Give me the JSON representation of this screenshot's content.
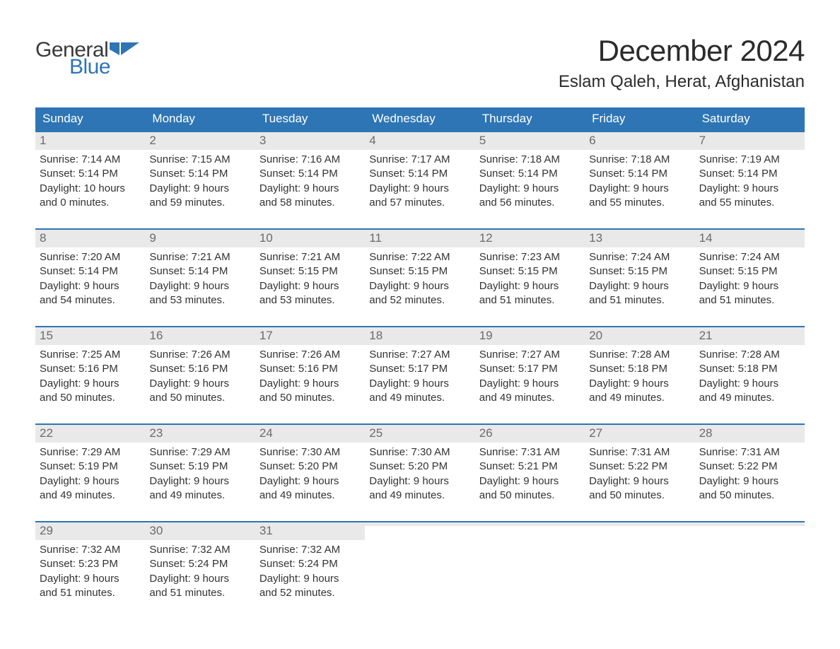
{
  "logo": {
    "word1": "General",
    "word2": "Blue",
    "flag_color": "#2e75b5"
  },
  "title": "December 2024",
  "location": "Eslam Qaleh, Herat, Afghanistan",
  "colors": {
    "header_bg": "#2e75b5",
    "header_text": "#ffffff",
    "week_border": "#2e75b5",
    "daynum_bg": "#e9e9e9",
    "daynum_text": "#6b6b6b",
    "body_text": "#333333",
    "page_bg": "#ffffff"
  },
  "typography": {
    "title_fontsize": 42,
    "location_fontsize": 24,
    "dow_fontsize": 17,
    "daynum_fontsize": 17,
    "body_fontsize": 15,
    "font_family": "Arial"
  },
  "layout": {
    "columns": 7,
    "week_border_width": 2
  },
  "days_of_week": [
    "Sunday",
    "Monday",
    "Tuesday",
    "Wednesday",
    "Thursday",
    "Friday",
    "Saturday"
  ],
  "labels": {
    "sunrise": "Sunrise:",
    "sunset": "Sunset:",
    "daylight": "Daylight:"
  },
  "weeks": [
    [
      {
        "n": "1",
        "sunrise": "7:14 AM",
        "sunset": "5:14 PM",
        "dl1": "10 hours",
        "dl2": "and 0 minutes."
      },
      {
        "n": "2",
        "sunrise": "7:15 AM",
        "sunset": "5:14 PM",
        "dl1": "9 hours",
        "dl2": "and 59 minutes."
      },
      {
        "n": "3",
        "sunrise": "7:16 AM",
        "sunset": "5:14 PM",
        "dl1": "9 hours",
        "dl2": "and 58 minutes."
      },
      {
        "n": "4",
        "sunrise": "7:17 AM",
        "sunset": "5:14 PM",
        "dl1": "9 hours",
        "dl2": "and 57 minutes."
      },
      {
        "n": "5",
        "sunrise": "7:18 AM",
        "sunset": "5:14 PM",
        "dl1": "9 hours",
        "dl2": "and 56 minutes."
      },
      {
        "n": "6",
        "sunrise": "7:18 AM",
        "sunset": "5:14 PM",
        "dl1": "9 hours",
        "dl2": "and 55 minutes."
      },
      {
        "n": "7",
        "sunrise": "7:19 AM",
        "sunset": "5:14 PM",
        "dl1": "9 hours",
        "dl2": "and 55 minutes."
      }
    ],
    [
      {
        "n": "8",
        "sunrise": "7:20 AM",
        "sunset": "5:14 PM",
        "dl1": "9 hours",
        "dl2": "and 54 minutes."
      },
      {
        "n": "9",
        "sunrise": "7:21 AM",
        "sunset": "5:14 PM",
        "dl1": "9 hours",
        "dl2": "and 53 minutes."
      },
      {
        "n": "10",
        "sunrise": "7:21 AM",
        "sunset": "5:15 PM",
        "dl1": "9 hours",
        "dl2": "and 53 minutes."
      },
      {
        "n": "11",
        "sunrise": "7:22 AM",
        "sunset": "5:15 PM",
        "dl1": "9 hours",
        "dl2": "and 52 minutes."
      },
      {
        "n": "12",
        "sunrise": "7:23 AM",
        "sunset": "5:15 PM",
        "dl1": "9 hours",
        "dl2": "and 51 minutes."
      },
      {
        "n": "13",
        "sunrise": "7:24 AM",
        "sunset": "5:15 PM",
        "dl1": "9 hours",
        "dl2": "and 51 minutes."
      },
      {
        "n": "14",
        "sunrise": "7:24 AM",
        "sunset": "5:15 PM",
        "dl1": "9 hours",
        "dl2": "and 51 minutes."
      }
    ],
    [
      {
        "n": "15",
        "sunrise": "7:25 AM",
        "sunset": "5:16 PM",
        "dl1": "9 hours",
        "dl2": "and 50 minutes."
      },
      {
        "n": "16",
        "sunrise": "7:26 AM",
        "sunset": "5:16 PM",
        "dl1": "9 hours",
        "dl2": "and 50 minutes."
      },
      {
        "n": "17",
        "sunrise": "7:26 AM",
        "sunset": "5:16 PM",
        "dl1": "9 hours",
        "dl2": "and 50 minutes."
      },
      {
        "n": "18",
        "sunrise": "7:27 AM",
        "sunset": "5:17 PM",
        "dl1": "9 hours",
        "dl2": "and 49 minutes."
      },
      {
        "n": "19",
        "sunrise": "7:27 AM",
        "sunset": "5:17 PM",
        "dl1": "9 hours",
        "dl2": "and 49 minutes."
      },
      {
        "n": "20",
        "sunrise": "7:28 AM",
        "sunset": "5:18 PM",
        "dl1": "9 hours",
        "dl2": "and 49 minutes."
      },
      {
        "n": "21",
        "sunrise": "7:28 AM",
        "sunset": "5:18 PM",
        "dl1": "9 hours",
        "dl2": "and 49 minutes."
      }
    ],
    [
      {
        "n": "22",
        "sunrise": "7:29 AM",
        "sunset": "5:19 PM",
        "dl1": "9 hours",
        "dl2": "and 49 minutes."
      },
      {
        "n": "23",
        "sunrise": "7:29 AM",
        "sunset": "5:19 PM",
        "dl1": "9 hours",
        "dl2": "and 49 minutes."
      },
      {
        "n": "24",
        "sunrise": "7:30 AM",
        "sunset": "5:20 PM",
        "dl1": "9 hours",
        "dl2": "and 49 minutes."
      },
      {
        "n": "25",
        "sunrise": "7:30 AM",
        "sunset": "5:20 PM",
        "dl1": "9 hours",
        "dl2": "and 49 minutes."
      },
      {
        "n": "26",
        "sunrise": "7:31 AM",
        "sunset": "5:21 PM",
        "dl1": "9 hours",
        "dl2": "and 50 minutes."
      },
      {
        "n": "27",
        "sunrise": "7:31 AM",
        "sunset": "5:22 PM",
        "dl1": "9 hours",
        "dl2": "and 50 minutes."
      },
      {
        "n": "28",
        "sunrise": "7:31 AM",
        "sunset": "5:22 PM",
        "dl1": "9 hours",
        "dl2": "and 50 minutes."
      }
    ],
    [
      {
        "n": "29",
        "sunrise": "7:32 AM",
        "sunset": "5:23 PM",
        "dl1": "9 hours",
        "dl2": "and 51 minutes."
      },
      {
        "n": "30",
        "sunrise": "7:32 AM",
        "sunset": "5:24 PM",
        "dl1": "9 hours",
        "dl2": "and 51 minutes."
      },
      {
        "n": "31",
        "sunrise": "7:32 AM",
        "sunset": "5:24 PM",
        "dl1": "9 hours",
        "dl2": "and 52 minutes."
      },
      {
        "empty": true
      },
      {
        "empty": true
      },
      {
        "empty": true
      },
      {
        "empty": true
      }
    ]
  ]
}
